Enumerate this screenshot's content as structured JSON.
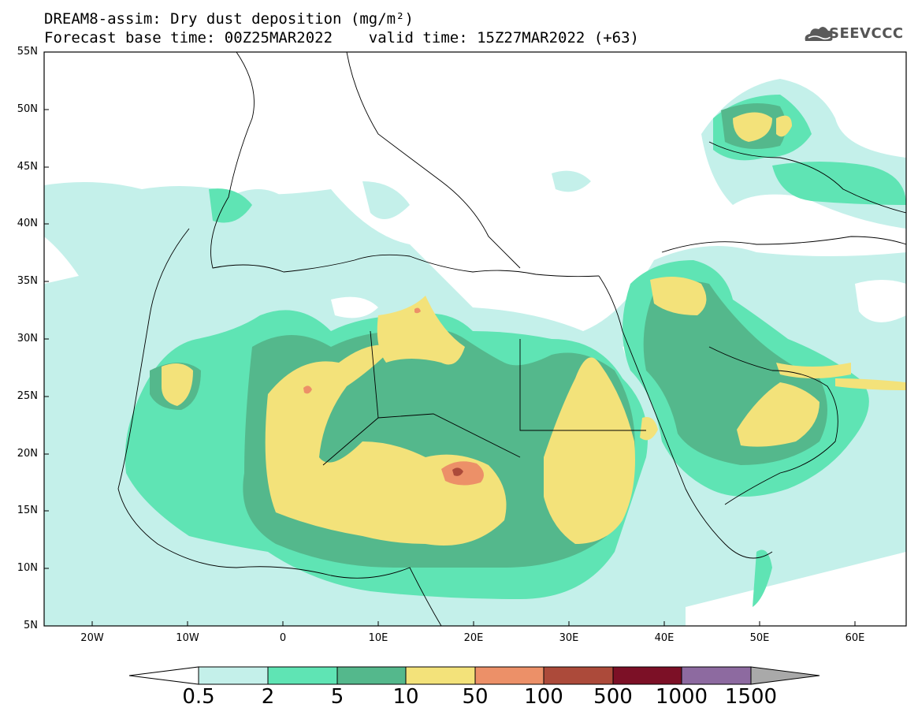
{
  "header": {
    "title": "DREAM8-assim: Dry dust deposition (mg/m²)",
    "forecast_line": "Forecast base time: 00Z25MAR2022    valid time: 15Z27MAR2022 (+63)",
    "logo_text": "SEEVCCC",
    "logo_icon": "cloud-logo-icon"
  },
  "map": {
    "lat_labels": [
      "55N",
      "50N",
      "45N",
      "40N",
      "35N",
      "30N",
      "25N",
      "20N",
      "15N",
      "10N",
      "5N"
    ],
    "lon_labels": [
      "20W",
      "10W",
      "0",
      "10E",
      "20E",
      "30E",
      "40E",
      "50E",
      "60E"
    ]
  },
  "colorbar": {
    "labels": [
      "0.5",
      "2",
      "5",
      "10",
      "50",
      "100",
      "500",
      "1000",
      "1500"
    ],
    "colors": [
      "#c4f0ea",
      "#5fe4b4",
      "#54b88c",
      "#f3e27a",
      "#ec9068",
      "#ac4a3a",
      "#7c1026",
      "#8d6aa0",
      "#a9a9a9"
    ]
  }
}
